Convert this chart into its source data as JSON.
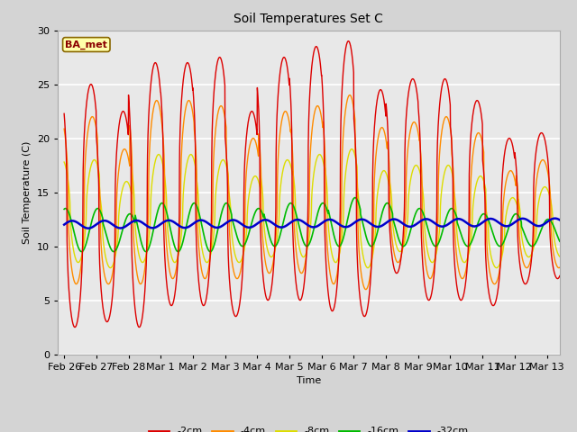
{
  "title": "Soil Temperatures Set C",
  "xlabel": "Time",
  "ylabel": "Soil Temperature (C)",
  "ylim": [
    0,
    30
  ],
  "annotation": "BA_met",
  "legend_labels": [
    "-2cm",
    "-4cm",
    "-8cm",
    "-16cm",
    "-32cm"
  ],
  "line_colors": [
    "#dd0000",
    "#ff8c00",
    "#dddd00",
    "#00bb00",
    "#0000cc"
  ],
  "line_widths": [
    1.0,
    1.0,
    1.0,
    1.2,
    1.8
  ],
  "background_color": "#e8e8e8",
  "grid_color": "#ffffff",
  "tick_labels": [
    "Feb 26",
    "Feb 27",
    "Feb 28",
    "Mar 1",
    "Mar 2",
    "Mar 3",
    "Mar 4",
    "Mar 5",
    "Mar 6",
    "Mar 7",
    "Mar 8",
    "Mar 9",
    "Mar 10",
    "Mar 11",
    "Mar 12",
    "Mar 13"
  ],
  "tick_positions": [
    0,
    1,
    2,
    3,
    4,
    5,
    6,
    7,
    8,
    9,
    10,
    11,
    12,
    13,
    14,
    15
  ]
}
